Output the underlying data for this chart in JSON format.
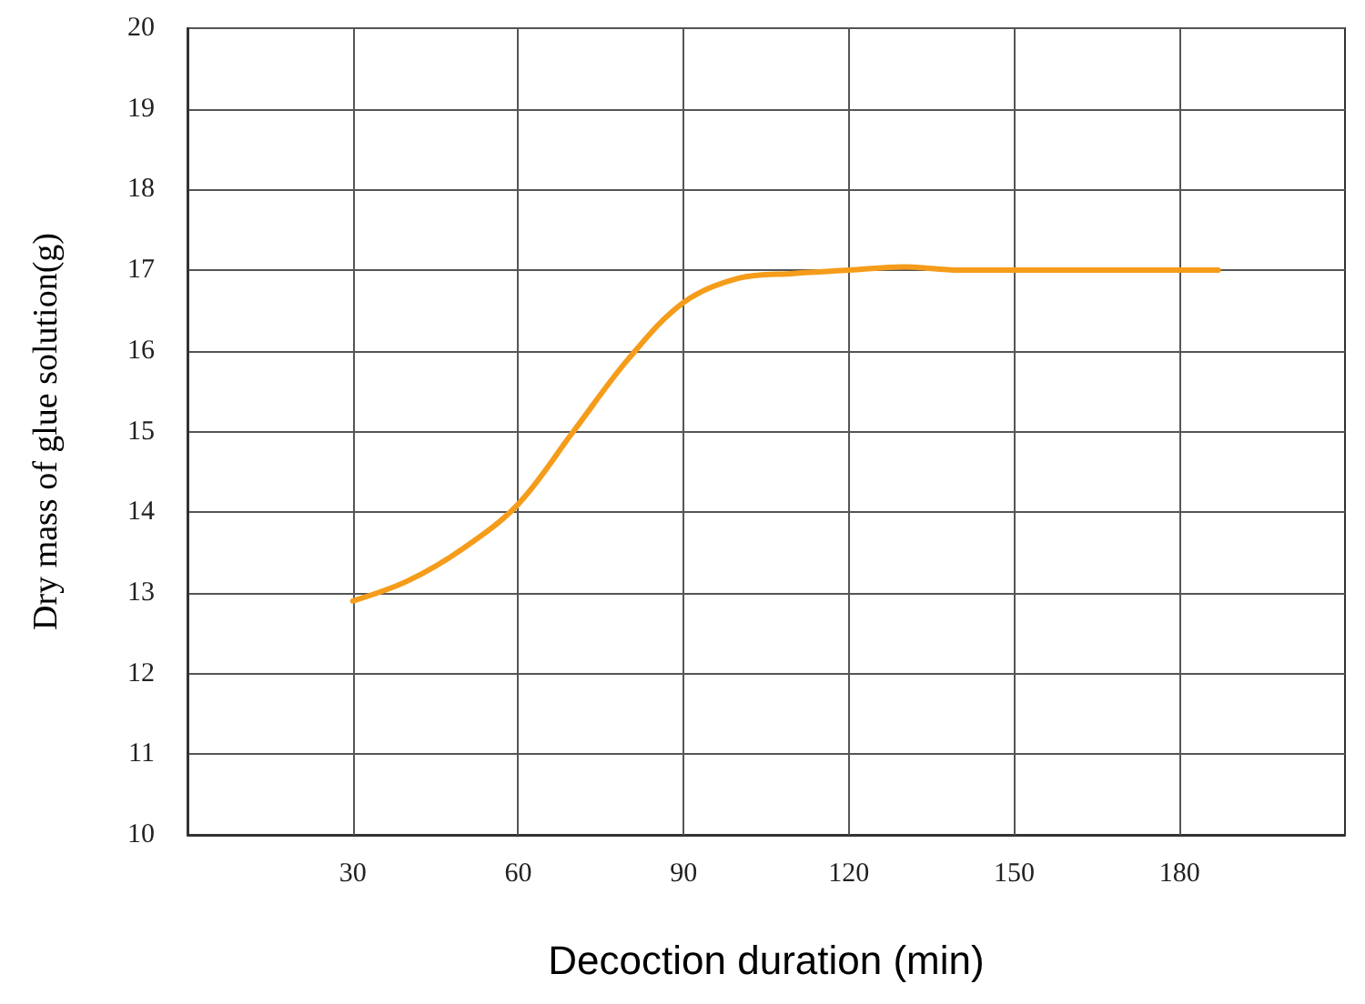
{
  "chart_data": {
    "type": "line",
    "xlabel": "Decoction duration (min)",
    "ylabel": "Dry mass of glue solution(g)",
    "x": [
      30,
      40,
      50,
      60,
      70,
      80,
      90,
      100,
      110,
      120,
      130,
      140,
      150,
      165,
      187
    ],
    "series": [
      {
        "color": "#f59c1a",
        "values": [
          12.9,
          13.15,
          13.55,
          14.1,
          15.0,
          15.9,
          16.6,
          16.9,
          16.96,
          17.0,
          17.04,
          17.0,
          17.0,
          17.0,
          17.0
        ]
      }
    ],
    "xlim": [
      0,
      210
    ],
    "xticks": [
      30,
      60,
      90,
      120,
      150,
      180
    ],
    "ylim": [
      10,
      20
    ],
    "yticks": [
      10,
      11,
      12,
      13,
      14,
      15,
      16,
      17,
      18,
      19,
      20
    ],
    "grid": true,
    "marker": "none",
    "line_style": "solid"
  }
}
